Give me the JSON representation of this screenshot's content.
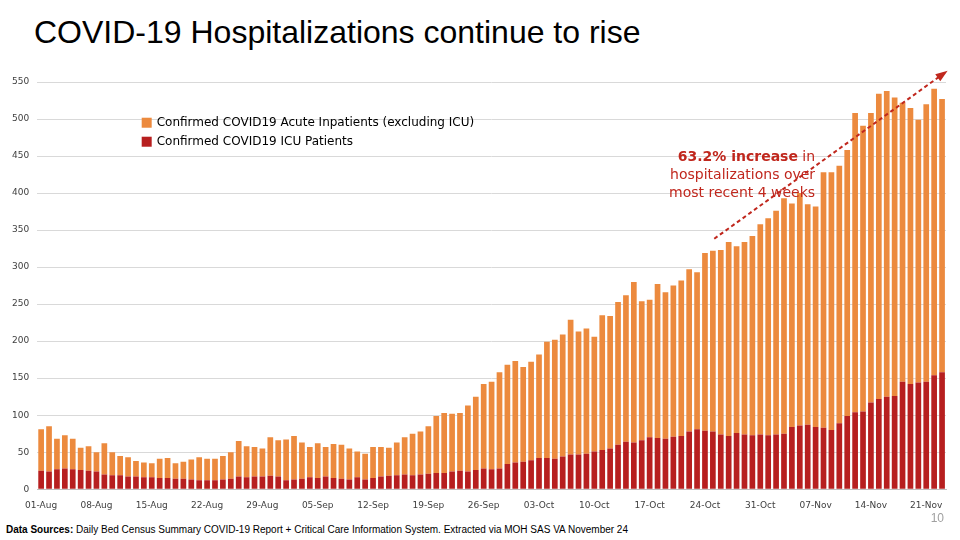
{
  "chart_data": {
    "type": "bar",
    "title": "COVID-19 Hospitalizations continue to rise",
    "categories": [
      "01-Aug",
      null,
      null,
      null,
      null,
      null,
      null,
      "08-Aug",
      null,
      null,
      null,
      null,
      null,
      null,
      "15-Aug",
      null,
      null,
      null,
      null,
      null,
      null,
      "22-Aug",
      null,
      null,
      null,
      null,
      null,
      null,
      "29-Aug",
      null,
      null,
      null,
      null,
      null,
      null,
      "05-Sep",
      null,
      null,
      null,
      null,
      null,
      null,
      "12-Sep",
      null,
      null,
      null,
      null,
      null,
      null,
      "19-Sep",
      null,
      null,
      null,
      null,
      null,
      null,
      "26-Sep",
      null,
      null,
      null,
      null,
      null,
      null,
      "03-Oct",
      null,
      null,
      null,
      null,
      null,
      null,
      "10-Oct",
      null,
      null,
      null,
      null,
      null,
      null,
      "17-Oct",
      null,
      null,
      null,
      null,
      null,
      null,
      "24-Oct",
      null,
      null,
      null,
      null,
      null,
      null,
      "31-Oct",
      null,
      null,
      null,
      null,
      null,
      null,
      "07-Nov",
      null,
      null,
      null,
      null,
      null,
      null,
      "14-Nov",
      null,
      null,
      null,
      null,
      null,
      null,
      "21-Nov",
      null,
      null
    ],
    "series": [
      {
        "name": "Confirmed COVID19 Acute Inpatients (excluding ICU)",
        "color": "#ec8a3e",
        "values": [
          56,
          61,
          41,
          45,
          41,
          30,
          33,
          26,
          42,
          31,
          26,
          26,
          21,
          20,
          19,
          26,
          27,
          21,
          23,
          27,
          31,
          29,
          29,
          32,
          36,
          48,
          42,
          40,
          38,
          52,
          49,
          55,
          59,
          49,
          41,
          47,
          40,
          46,
          46,
          42,
          35,
          35,
          42,
          40,
          38,
          44,
          50,
          56,
          58,
          64,
          77,
          81,
          78,
          78,
          89,
          99,
          114,
          118,
          130,
          134,
          137,
          128,
          133,
          140,
          157,
          161,
          165,
          182,
          166,
          169,
          155,
          182,
          179,
          193,
          198,
          217,
          188,
          186,
          208,
          198,
          204,
          210,
          219,
          212,
          240,
          244,
          249,
          262,
          252,
          260,
          269,
          284,
          293,
          302,
          318,
          302,
          314,
          298,
          298,
          345,
          348,
          348,
          359,
          404,
          386,
          391,
          412,
          413,
          403,
          377,
          373,
          355,
          375,
          387,
          369
        ]
      },
      {
        "name": "Confirmed COVID19 ICU Patients",
        "color": "#b71f1f",
        "values": [
          25,
          24,
          27,
          28,
          27,
          26,
          25,
          24,
          20,
          19,
          19,
          17,
          17,
          16,
          16,
          15,
          15,
          14,
          14,
          13,
          12,
          12,
          12,
          13,
          14,
          17,
          16,
          17,
          17,
          18,
          17,
          12,
          13,
          14,
          16,
          15,
          17,
          15,
          14,
          13,
          16,
          13,
          15,
          17,
          18,
          19,
          20,
          19,
          20,
          21,
          22,
          22,
          24,
          25,
          24,
          26,
          28,
          27,
          28,
          34,
          36,
          37,
          39,
          42,
          42,
          41,
          44,
          47,
          47,
          48,
          51,
          53,
          55,
          60,
          64,
          63,
          66,
          70,
          69,
          68,
          71,
          72,
          78,
          81,
          79,
          78,
          74,
          72,
          76,
          74,
          73,
          74,
          73,
          74,
          75,
          84,
          86,
          87,
          84,
          83,
          80,
          89,
          99,
          104,
          105,
          117,
          122,
          125,
          126,
          145,
          142,
          144,
          145,
          154,
          158
        ]
      }
    ],
    "ylim": [
      0,
      550
    ],
    "yticks": [
      0,
      50,
      100,
      150,
      200,
      250,
      300,
      350,
      400,
      450,
      500,
      550
    ],
    "grid": true,
    "stacked": true,
    "legend": "top-left",
    "annotation_bold": "63.2% increase",
    "annotation": [
      "63.2% increase in",
      "hospitalizations over",
      "most recent 4 weeks"
    ],
    "source_label": "Data Sources:",
    "source": "Daily Bed Census Summary COVID-19 Report + Critical Care Information System. Extracted via MOH SAS VA November 24",
    "page": "10"
  }
}
